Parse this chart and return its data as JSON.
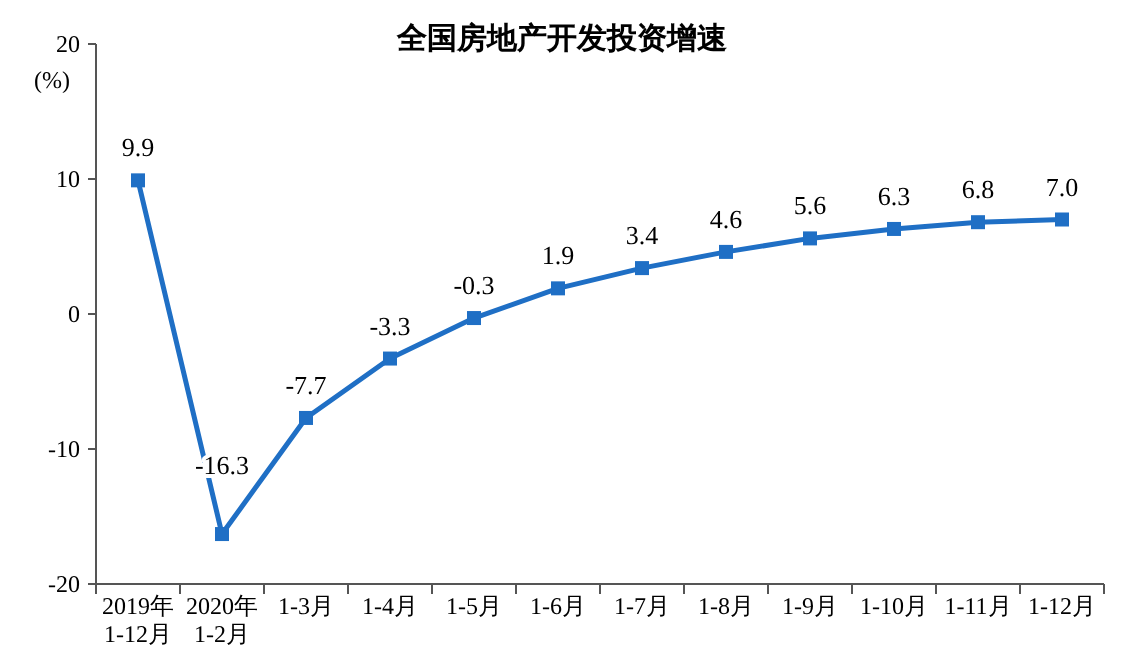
{
  "chart_data": {
    "type": "line",
    "title": "全国房地产开发投资增速",
    "ylabel": "(%)",
    "categories": [
      "2019年\n1-12月",
      "2020年\n1-2月",
      "1-3月",
      "1-4月",
      "1-5月",
      "1-6月",
      "1-7月",
      "1-8月",
      "1-9月",
      "1-10月",
      "1-11月",
      "1-12月"
    ],
    "series": [
      {
        "color": "#1f6fc5",
        "values": [
          9.9,
          -16.3,
          -7.7,
          -3.3,
          -0.3,
          1.9,
          3.4,
          4.6,
          5.6,
          6.3,
          6.8,
          7.0
        ]
      }
    ],
    "ylim": [
      -20,
      20
    ],
    "yticks": [
      -20,
      -10,
      0,
      10,
      20
    ],
    "value_labels": [
      "9.9",
      "-16.3",
      "-7.7",
      "-3.3",
      "-0.3",
      "1.9",
      "3.4",
      "4.6",
      "5.6",
      "6.3",
      "6.8",
      "7.0"
    ],
    "grid": false,
    "marker": "square",
    "line_style": "solid"
  }
}
